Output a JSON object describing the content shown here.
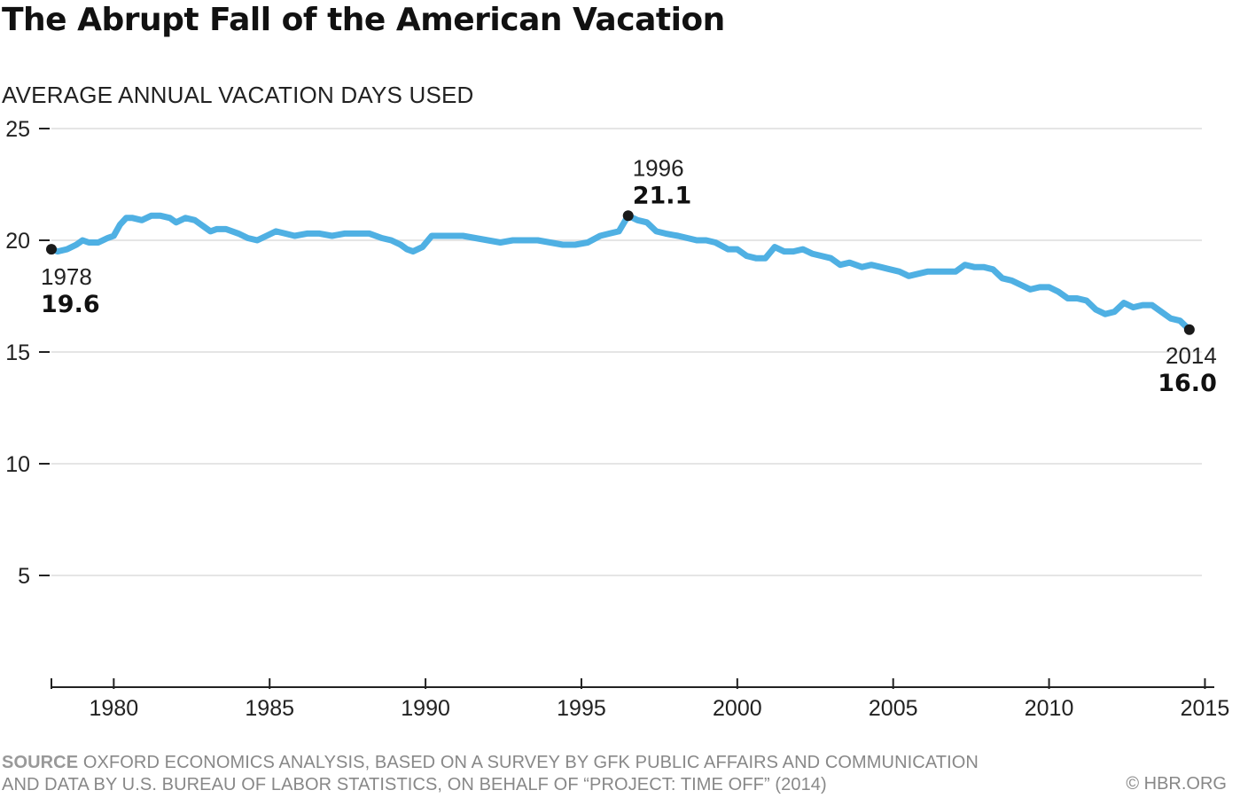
{
  "title": "The Abrupt Fall of the American Vacation",
  "source": {
    "label": "SOURCE",
    "line1": "OXFORD ECONOMICS ANALYSIS, BASED ON A SURVEY BY GFK PUBLIC AFFAIRS AND COMMUNICATION",
    "line2": "AND DATA BY U.S. BUREAU OF LABOR STATISTICS, ON BEHALF OF “PROJECT: TIME OFF” (2014)"
  },
  "credit": "© HBR.ORG",
  "colors": {
    "line": "#4fb0e3",
    "marker": "#1a1a1a",
    "grid": "#e5e5e5",
    "axis": "#222222"
  },
  "chart_data": {
    "type": "line",
    "title": "The Abrupt Fall of the American Vacation",
    "ylabel": "AVERAGE ANNUAL VACATION DAYS USED",
    "xlabel": "",
    "xlim": [
      1978.0,
      2015.3
    ],
    "ylim": [
      0,
      25
    ],
    "xticks": [
      1980,
      1985,
      1990,
      1995,
      2000,
      2005,
      2010,
      2015
    ],
    "yticks": [
      5,
      10,
      15,
      20,
      25
    ],
    "grid": true,
    "series": [
      {
        "x": [
          1978.0,
          1978.2,
          1978.5,
          1978.8,
          1979.0,
          1979.2,
          1979.5,
          1979.8,
          1980.0,
          1980.2,
          1980.4,
          1980.6,
          1980.9,
          1981.2,
          1981.5,
          1981.8,
          1982.0,
          1982.3,
          1982.6,
          1982.9,
          1983.1,
          1983.3,
          1983.6,
          1984.0,
          1984.3,
          1984.6,
          1984.9,
          1985.2,
          1985.5,
          1985.8,
          1986.2,
          1986.6,
          1987.0,
          1987.4,
          1987.8,
          1988.2,
          1988.6,
          1988.9,
          1989.2,
          1989.4,
          1989.6,
          1989.9,
          1990.2,
          1990.5,
          1990.8,
          1991.2,
          1991.6,
          1992.0,
          1992.4,
          1992.8,
          1993.2,
          1993.6,
          1994.0,
          1994.4,
          1994.8,
          1995.2,
          1995.6,
          1995.9,
          1996.2,
          1996.5,
          1996.8,
          1997.1,
          1997.4,
          1997.7,
          1998.1,
          1998.4,
          1998.7,
          1999.0,
          1999.3,
          1999.7,
          2000.0,
          2000.3,
          2000.6,
          2000.9,
          2001.2,
          2001.5,
          2001.8,
          2002.1,
          2002.4,
          2002.7,
          2003.0,
          2003.3,
          2003.6,
          2004.0,
          2004.3,
          2004.6,
          2004.9,
          2005.2,
          2005.5,
          2005.8,
          2006.1,
          2006.4,
          2006.7,
          2007.0,
          2007.3,
          2007.6,
          2007.9,
          2008.2,
          2008.5,
          2008.8,
          2009.1,
          2009.4,
          2009.7,
          2010.0,
          2010.3,
          2010.6,
          2010.9,
          2011.2,
          2011.5,
          2011.8,
          2012.1,
          2012.4,
          2012.7,
          2013.0,
          2013.3,
          2013.6,
          2013.9,
          2014.2,
          2014.5
        ],
        "y": [
          19.6,
          19.5,
          19.6,
          19.8,
          20.0,
          19.9,
          19.9,
          20.1,
          20.2,
          20.7,
          21.0,
          21.0,
          20.9,
          21.1,
          21.1,
          21.0,
          20.8,
          21.0,
          20.9,
          20.6,
          20.4,
          20.5,
          20.5,
          20.3,
          20.1,
          20.0,
          20.2,
          20.4,
          20.3,
          20.2,
          20.3,
          20.3,
          20.2,
          20.3,
          20.3,
          20.3,
          20.1,
          20.0,
          19.8,
          19.6,
          19.5,
          19.7,
          20.2,
          20.2,
          20.2,
          20.2,
          20.1,
          20.0,
          19.9,
          20.0,
          20.0,
          20.0,
          19.9,
          19.8,
          19.8,
          19.9,
          20.2,
          20.3,
          20.4,
          21.1,
          20.9,
          20.8,
          20.4,
          20.3,
          20.2,
          20.1,
          20.0,
          20.0,
          19.9,
          19.6,
          19.6,
          19.3,
          19.2,
          19.2,
          19.7,
          19.5,
          19.5,
          19.6,
          19.4,
          19.3,
          19.2,
          18.9,
          19.0,
          18.8,
          18.9,
          18.8,
          18.7,
          18.6,
          18.4,
          18.5,
          18.6,
          18.6,
          18.6,
          18.6,
          18.9,
          18.8,
          18.8,
          18.7,
          18.3,
          18.2,
          18.0,
          17.8,
          17.9,
          17.9,
          17.7,
          17.4,
          17.4,
          17.3,
          16.9,
          16.7,
          16.8,
          17.2,
          17.0,
          17.1,
          17.1,
          16.8,
          16.5,
          16.4,
          16.0
        ]
      }
    ],
    "annotations": [
      {
        "year": "1978",
        "value": "19.6",
        "x": 1978.0,
        "y": 19.6,
        "position": "below-right"
      },
      {
        "year": "1996",
        "value": "21.1",
        "x": 1996.5,
        "y": 21.1,
        "position": "above-right"
      },
      {
        "year": "2014",
        "value": "16.0",
        "x": 2014.5,
        "y": 16.0,
        "position": "below-left"
      }
    ]
  }
}
